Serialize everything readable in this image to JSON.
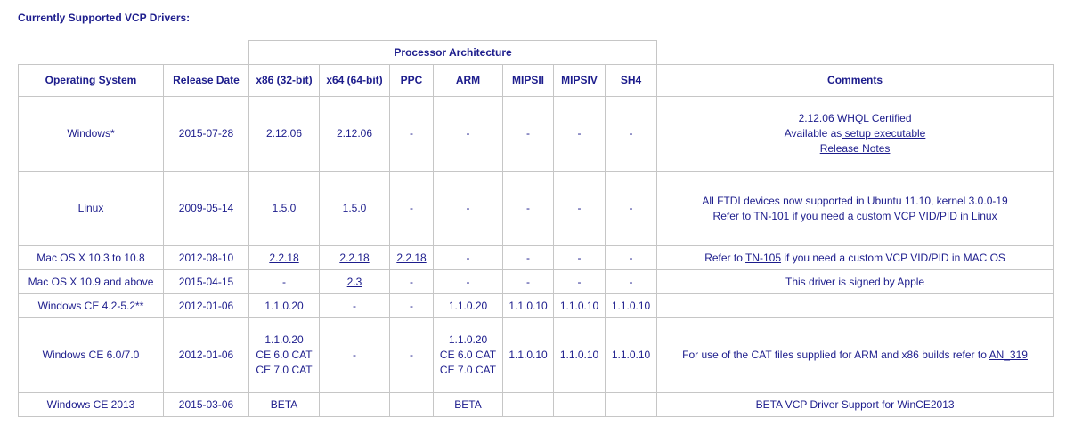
{
  "heading": "Currently Supported VCP Drivers:",
  "table": {
    "group_header": "Processor Architecture",
    "headers": {
      "os": "Operating System",
      "release": "Release Date",
      "x86": "x86 (32-bit)",
      "x64": "x64 (64-bit)",
      "ppc": "PPC",
      "arm": "ARM",
      "mipsii": "MIPSII",
      "mipsiv": "MIPSIV",
      "sh4": "SH4",
      "comments": "Comments"
    },
    "rows": {
      "windows": {
        "os": "Windows*",
        "release": "2015-07-28",
        "x86": "2.12.06",
        "x64": "2.12.06",
        "ppc": "-",
        "arm": "-",
        "mipsii": "-",
        "mipsiv": "-",
        "sh4": "-",
        "comment_1": "2.12.06 WHQL Certified",
        "comment_2_prefix": "Available as",
        "comment_2_link": " setup executable",
        "comment_3_link": "Release Notes"
      },
      "linux": {
        "os": "Linux",
        "release": "2009-05-14",
        "x86": "1.5.0",
        "x64": "1.5.0",
        "ppc": "-",
        "arm": "-",
        "mipsii": "-",
        "mipsiv": "-",
        "sh4": "-",
        "comment_1": "All FTDI devices now supported in Ubuntu 11.10, kernel 3.0.0-19",
        "comment_2_prefix": "Refer to ",
        "comment_2_link": "TN-101",
        "comment_2_suffix": " if you need a custom VCP VID/PID in Linux"
      },
      "mac_old": {
        "os": "Mac OS X 10.3 to 10.8",
        "release": "2012-08-10",
        "x86": "2.2.18",
        "x64": "2.2.18",
        "ppc": "2.2.18",
        "arm": "-",
        "mipsii": "-",
        "mipsiv": "-",
        "sh4": "-",
        "comment_prefix": "Refer to ",
        "comment_link": "TN-105",
        "comment_suffix": " if you need a custom VCP VID/PID in MAC OS"
      },
      "mac_new": {
        "os": "Mac OS X 10.9 and above",
        "release": "2015-04-15",
        "x86": "-",
        "x64": "2.3",
        "ppc": "-",
        "arm": "-",
        "mipsii": "-",
        "mipsiv": "-",
        "sh4": "-",
        "comment": "This driver is signed by Apple"
      },
      "wince42": {
        "os": "Windows CE 4.2-5.2**",
        "release": "2012-01-06",
        "x86": "1.1.0.20",
        "x64": "-",
        "ppc": "-",
        "arm": "1.1.0.20",
        "mipsii": "1.1.0.10",
        "mipsiv": "1.1.0.10",
        "sh4": "1.1.0.10",
        "comment": ""
      },
      "wince60": {
        "os": "Windows CE 6.0/7.0",
        "release": "2012-01-06",
        "x86_1": "1.1.0.20",
        "x86_2": "CE 6.0 CAT",
        "x86_3": "CE 7.0 CAT",
        "x64": "-",
        "ppc": "-",
        "arm_1": "1.1.0.20",
        "arm_2": "CE 6.0 CAT",
        "arm_3": "CE 7.0 CAT",
        "mipsii": "1.1.0.10",
        "mipsiv": "1.1.0.10",
        "sh4": "1.1.0.10",
        "comment_prefix": "For use of the CAT files supplied for ARM and x86 builds refer to ",
        "comment_link": "AN_319"
      },
      "wince2013": {
        "os": "Windows CE 2013",
        "release": "2015-03-06",
        "x86": "BETA",
        "x64": "",
        "ppc": "",
        "arm": "BETA",
        "mipsii": "",
        "mipsiv": "",
        "sh4": "",
        "comment": "BETA VCP Driver Support for WinCE2013"
      }
    }
  }
}
